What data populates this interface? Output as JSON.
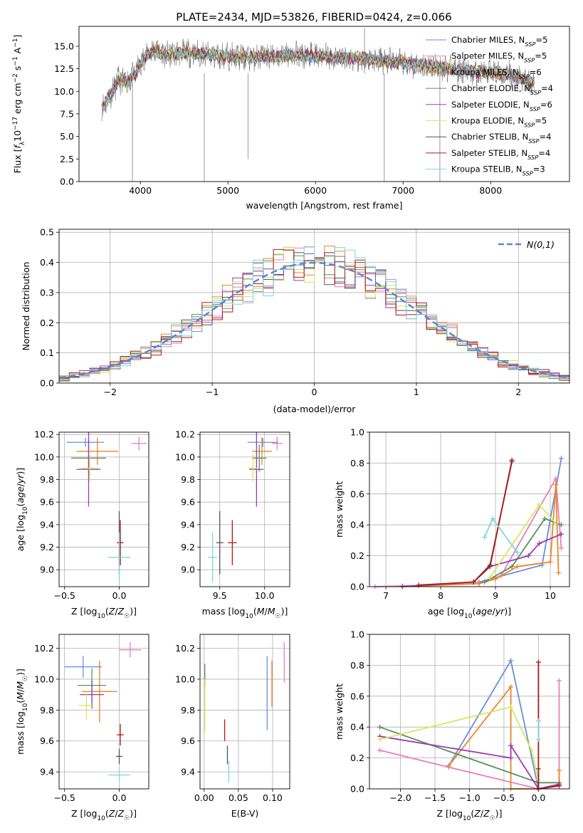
{
  "figure": {
    "title": "PLATE=2434, MJD=53826, FIBERID=0424, z=0.066"
  },
  "models": [
    {
      "name": "Chabrier MILES",
      "nssp": "5",
      "color": "#6a8fdc"
    },
    {
      "name": "Salpeter MILES",
      "nssp": "5",
      "color": "#e67fba"
    },
    {
      "name": "Kroupa MILES",
      "nssp": "6",
      "color": "#e8862a"
    },
    {
      "name": "Chabrier ELODIE",
      "nssp": "4",
      "color": "#5e8f60"
    },
    {
      "name": "Salpeter ELODIE",
      "nssp": "6",
      "color": "#9a3ab0"
    },
    {
      "name": "Kroupa ELODIE",
      "nssp": "5",
      "color": "#d6e85a"
    },
    {
      "name": "Chabrier STELIB",
      "nssp": "4",
      "color": "#555555"
    },
    {
      "name": "Salpeter STELIB",
      "nssp": "4",
      "color": "#b01818"
    },
    {
      "name": "Kroupa STELIB",
      "nssp": "3",
      "color": "#7fd6dc"
    }
  ],
  "chart_data": [
    {
      "id": "spectrum",
      "type": "line",
      "xlabel": "wavelength [Angstrom, rest frame]",
      "ylabel": "Flux [f_λ 10^-17 erg cm^-2 s^-1 A^-1]",
      "xlim": [
        3300,
        8900
      ],
      "ylim": [
        0,
        17.2
      ],
      "xticks": [
        4000,
        5000,
        6000,
        7000,
        8000
      ],
      "yticks": [
        0.0,
        2.5,
        5.0,
        7.5,
        10.0,
        12.5,
        15.0
      ],
      "continuum": {
        "x": [
          3550,
          3650,
          3750,
          3850,
          3950,
          4050,
          4150,
          4300,
          4500,
          4800,
          5100,
          5400,
          5800,
          6200,
          6600,
          7000,
          7400,
          7800,
          8200,
          8500
        ],
        "y": [
          8.0,
          9.5,
          11.2,
          11.0,
          12.0,
          13.8,
          14.6,
          14.0,
          14.3,
          14.0,
          13.8,
          13.8,
          14.0,
          13.8,
          13.6,
          13.1,
          12.7,
          12.2,
          11.9,
          10.8
        ]
      },
      "legend": "top-right",
      "grid": false
    },
    {
      "id": "residuals",
      "type": "bar",
      "xlabel": "(data-model)/error",
      "ylabel": "Normed distribution",
      "xlim": [
        -2.5,
        2.5
      ],
      "ylim": [
        0,
        0.51
      ],
      "xticks": [
        -2,
        -1,
        0,
        1,
        2
      ],
      "yticks": [
        0.0,
        0.1,
        0.2,
        0.3,
        0.4,
        0.5
      ],
      "bin_edges_start": -2.5,
      "bin_width": 0.1,
      "gaussian_label": "N(0,1)",
      "legend": "top-right",
      "grid": true
    },
    {
      "id": "age_vs_Z",
      "type": "scatter",
      "xlabel": "Z [log10(Z/Z☉)]",
      "ylabel": "age [log10(age/yr)]",
      "xlim": [
        -0.55,
        0.27
      ],
      "ylim": [
        8.85,
        10.22
      ],
      "xticks": [
        -0.5,
        0.0
      ],
      "yticks": [
        9.0,
        9.2,
        9.4,
        9.6,
        9.8,
        10.0,
        10.2
      ],
      "points": [
        {
          "model": 0,
          "x": -0.31,
          "y": 10.13,
          "xerr": 0.17,
          "yerr": 0.04
        },
        {
          "model": 1,
          "x": 0.18,
          "y": 10.12,
          "xerr": 0.07,
          "yerr": 0.06
        },
        {
          "model": 2,
          "x": -0.2,
          "y": 10.05,
          "xerr": 0.19,
          "yerr": 0.12
        },
        {
          "model": 3,
          "x": -0.28,
          "y": 9.99,
          "xerr": 0.16,
          "yerr": 0.16
        },
        {
          "model": 4,
          "x": -0.28,
          "y": 9.89,
          "xerr": 0.11,
          "yerr": 0.33
        },
        {
          "model": 5,
          "x": -0.27,
          "y": 9.9,
          "xerr": 0.08,
          "yerr": 0.12
        },
        {
          "model": 6,
          "x": 0.0,
          "y": 9.24,
          "xerr": 0.02,
          "yerr": 0.28
        },
        {
          "model": 7,
          "x": 0.01,
          "y": 9.24,
          "xerr": 0.03,
          "yerr": 0.2
        },
        {
          "model": 8,
          "x": -0.0,
          "y": 9.11,
          "xerr": 0.1,
          "yerr": 0.22
        }
      ]
    },
    {
      "id": "age_vs_mass",
      "type": "scatter",
      "xlabel": "mass [log10(M/M☉)]",
      "ylabel": "",
      "xlim": [
        9.28,
        10.28
      ],
      "ylim": [
        8.85,
        10.22
      ],
      "xticks": [
        9.5,
        10.0
      ],
      "yticks": [
        9.0,
        9.2,
        9.4,
        9.6,
        9.8,
        10.0,
        10.2
      ],
      "points": [
        {
          "model": 0,
          "x": 9.98,
          "y": 10.13,
          "xerr": 0.17,
          "yerr": 0.04
        },
        {
          "model": 1,
          "x": 10.14,
          "y": 10.12,
          "xerr": 0.06,
          "yerr": 0.06
        },
        {
          "model": 2,
          "x": 9.97,
          "y": 10.05,
          "xerr": 0.11,
          "yerr": 0.12
        },
        {
          "model": 3,
          "x": 9.94,
          "y": 9.99,
          "xerr": 0.08,
          "yerr": 0.12
        },
        {
          "model": 4,
          "x": 9.91,
          "y": 9.89,
          "xerr": 0.08,
          "yerr": 0.33
        },
        {
          "model": 5,
          "x": 9.87,
          "y": 9.9,
          "xerr": 0.05,
          "yerr": 0.12
        },
        {
          "model": 6,
          "x": 9.5,
          "y": 9.24,
          "xerr": 0.04,
          "yerr": 0.28
        },
        {
          "model": 7,
          "x": 9.64,
          "y": 9.24,
          "xerr": 0.05,
          "yerr": 0.2
        },
        {
          "model": 8,
          "x": 9.42,
          "y": 9.11,
          "xerr": 0.05,
          "yerr": 0.22
        }
      ]
    },
    {
      "id": "weight_vs_age",
      "type": "line",
      "xlabel": "age [log10(age/yr)]",
      "ylabel": "mass weight",
      "xlim": [
        6.7,
        10.35
      ],
      "ylim": [
        0,
        1.0
      ],
      "xticks": [
        7,
        8,
        9,
        10
      ],
      "yticks": [
        0.0,
        0.2,
        0.4,
        0.6,
        0.8,
        1.0
      ],
      "series": [
        {
          "model": 0,
          "x": [
            8.7,
            9.85,
            10.2
          ],
          "y": [
            0.03,
            0.14,
            0.83
          ]
        },
        {
          "model": 1,
          "x": [
            6.8,
            7.3,
            8.7,
            9.1,
            10.1,
            10.2
          ],
          "y": [
            0.0,
            0.005,
            0.02,
            0.07,
            0.7,
            0.25
          ]
        },
        {
          "model": 2,
          "x": [
            7.3,
            8.7,
            9.0,
            9.4,
            10.0,
            10.1,
            10.15
          ],
          "y": [
            0.0,
            0.02,
            0.05,
            0.13,
            0.16,
            0.66,
            0.09
          ]
        },
        {
          "model": 3,
          "x": [
            8.8,
            9.3,
            9.9,
            10.2
          ],
          "y": [
            0.03,
            0.13,
            0.44,
            0.4
          ]
        },
        {
          "model": 4,
          "x": [
            7.3,
            8.6,
            8.9,
            9.6,
            9.8,
            10.2
          ],
          "y": [
            0.0,
            0.03,
            0.13,
            0.2,
            0.28,
            0.34
          ]
        },
        {
          "model": 5,
          "x": [
            8.9,
            9.8,
            10.1
          ],
          "y": [
            0.06,
            0.53,
            0.41
          ]
        },
        {
          "model": 6,
          "x": [
            8.6,
            8.9,
            9.3
          ],
          "y": [
            0.03,
            0.13,
            0.82
          ]
        },
        {
          "model": 7,
          "x": [
            7.6,
            8.6,
            8.9,
            9.3
          ],
          "y": [
            0.01,
            0.03,
            0.14,
            0.81
          ]
        },
        {
          "model": 8,
          "x": [
            8.8,
            8.95,
            9.4
          ],
          "y": [
            0.32,
            0.44,
            0.22
          ]
        }
      ]
    },
    {
      "id": "mass_vs_Z",
      "type": "scatter",
      "xlabel": "Z [log10(Z/Z☉)]",
      "ylabel": "mass [log10(M/M☉)]",
      "xlim": [
        -0.55,
        0.27
      ],
      "ylim": [
        9.29,
        10.29
      ],
      "xticks": [
        -0.5,
        0.0
      ],
      "yticks": [
        9.4,
        9.6,
        9.8,
        10.0,
        10.2
      ],
      "points": [
        {
          "model": 0,
          "x": -0.33,
          "y": 10.08,
          "xerr": 0.17,
          "yerr": 0.07
        },
        {
          "model": 1,
          "x": 0.1,
          "y": 10.19,
          "xerr": 0.1,
          "yerr": 0.05
        },
        {
          "model": 2,
          "x": -0.18,
          "y": 9.92,
          "xerr": 0.16,
          "yerr": 0.2
        },
        {
          "model": 3,
          "x": -0.25,
          "y": 9.96,
          "xerr": 0.13,
          "yerr": 0.11
        },
        {
          "model": 4,
          "x": -0.25,
          "y": 9.9,
          "xerr": 0.11,
          "yerr": 0.09
        },
        {
          "model": 5,
          "x": -0.3,
          "y": 9.83,
          "xerr": 0.07,
          "yerr": 0.09
        },
        {
          "model": 6,
          "x": 0.0,
          "y": 9.5,
          "xerr": 0.03,
          "yerr": 0.05
        },
        {
          "model": 7,
          "x": 0.01,
          "y": 9.64,
          "xerr": 0.03,
          "yerr": 0.07
        },
        {
          "model": 8,
          "x": 0.0,
          "y": 9.38,
          "xerr": 0.1,
          "yerr": 0.04
        }
      ]
    },
    {
      "id": "mass_vs_ebv",
      "type": "scatter",
      "xlabel": "E(B-V)",
      "ylabel": "",
      "xlim": [
        -0.006,
        0.125
      ],
      "ylim": [
        9.29,
        10.29
      ],
      "xticks": [
        0.0,
        0.05,
        0.1
      ],
      "yticks": [
        9.4,
        9.6,
        9.8,
        10.0,
        10.2
      ],
      "points": [
        {
          "model": 0,
          "x": 0.092,
          "y": 9.91,
          "xerr": 0.0,
          "yerr": 0.24
        },
        {
          "model": 1,
          "x": 0.117,
          "y": 10.11,
          "xerr": 0.0,
          "yerr": 0.13
        },
        {
          "model": 2,
          "x": 0.099,
          "y": 9.97,
          "xerr": 0.0,
          "yerr": 0.15
        },
        {
          "model": 3,
          "x": 0.001,
          "y": 10.03,
          "xerr": 0.0,
          "yerr": 0.07
        },
        {
          "model": 4,
          "x": 0.001,
          "y": 9.97,
          "xerr": 0.0,
          "yerr": 0.02
        },
        {
          "model": 5,
          "x": 0.001,
          "y": 9.83,
          "xerr": 0.0,
          "yerr": 0.17
        },
        {
          "model": 6,
          "x": 0.034,
          "y": 9.51,
          "xerr": 0.0,
          "yerr": 0.06
        },
        {
          "model": 7,
          "x": 0.03,
          "y": 9.67,
          "xerr": 0.0,
          "yerr": 0.07
        },
        {
          "model": 8,
          "x": 0.036,
          "y": 9.4,
          "xerr": 0.0,
          "yerr": 0.07
        }
      ]
    },
    {
      "id": "weight_vs_Z",
      "type": "line",
      "xlabel": "Z [log10(Z/Z☉)]",
      "ylabel": "mass weight",
      "xlim": [
        -2.45,
        0.45
      ],
      "ylim": [
        0,
        1.0
      ],
      "xticks": [
        -2.0,
        -1.5,
        -1.0,
        -0.5,
        0.0
      ],
      "yticks": [
        0.0,
        0.2,
        0.4,
        0.6,
        0.8,
        1.0
      ],
      "series": [
        {
          "model": 0,
          "x": [
            -1.3,
            -0.4,
            0.0,
            0.3
          ],
          "y": [
            0.15,
            0.83,
            0.0,
            0.03
          ]
        },
        {
          "model": 1,
          "x": [
            -2.3,
            -1.3,
            0.0,
            0.3,
            0.3
          ],
          "y": [
            0.25,
            0.14,
            0.0,
            0.02,
            0.7
          ]
        },
        {
          "model": 2,
          "x": [
            -1.3,
            -0.4,
            -0.4,
            0.0,
            0.3,
            0.3
          ],
          "y": [
            0.15,
            0.66,
            0.0,
            0.0,
            0.03,
            0.12
          ]
        },
        {
          "model": 3,
          "x": [
            -2.3,
            0.0,
            0.3
          ],
          "y": [
            0.4,
            0.04,
            0.04
          ]
        },
        {
          "model": 4,
          "x": [
            -2.3,
            -0.4,
            -0.4,
            0.0,
            0.3
          ],
          "y": [
            0.34,
            0.2,
            0.28,
            0.0,
            0.03
          ]
        },
        {
          "model": 5,
          "x": [
            -2.3,
            -0.4,
            -0.1,
            0.0
          ],
          "y": [
            0.32,
            0.53,
            0.25,
            0.06
          ]
        },
        {
          "model": 6,
          "x": [
            0.0,
            0.0
          ],
          "y": [
            0.0,
            0.13
          ]
        },
        {
          "model": 7,
          "x": [
            0.0,
            0.0,
            0.3
          ],
          "y": [
            0.82,
            0.0,
            0.02
          ]
        },
        {
          "model": 8,
          "x": [
            0.0,
            0.0
          ],
          "y": [
            0.32,
            0.44
          ]
        }
      ]
    }
  ]
}
